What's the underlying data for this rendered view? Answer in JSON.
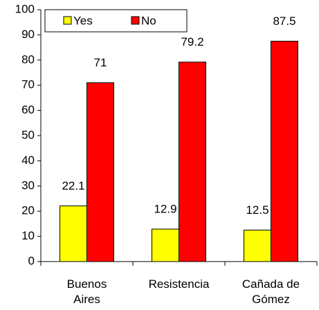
{
  "chart_data": {
    "type": "bar",
    "categories": [
      "Buenos Aires",
      "Resistencia",
      "Cañada de Gómez"
    ],
    "series": [
      {
        "name": "Yes",
        "color": "#ffff00",
        "values": [
          22.1,
          12.9,
          12.5
        ]
      },
      {
        "name": "No",
        "color": "#ff0000",
        "values": [
          71,
          79.2,
          87.5
        ]
      }
    ],
    "ylim": [
      0,
      100
    ],
    "yticks": [
      0,
      10,
      20,
      30,
      40,
      50,
      60,
      70,
      80,
      90,
      100
    ],
    "legend": "top-left"
  }
}
